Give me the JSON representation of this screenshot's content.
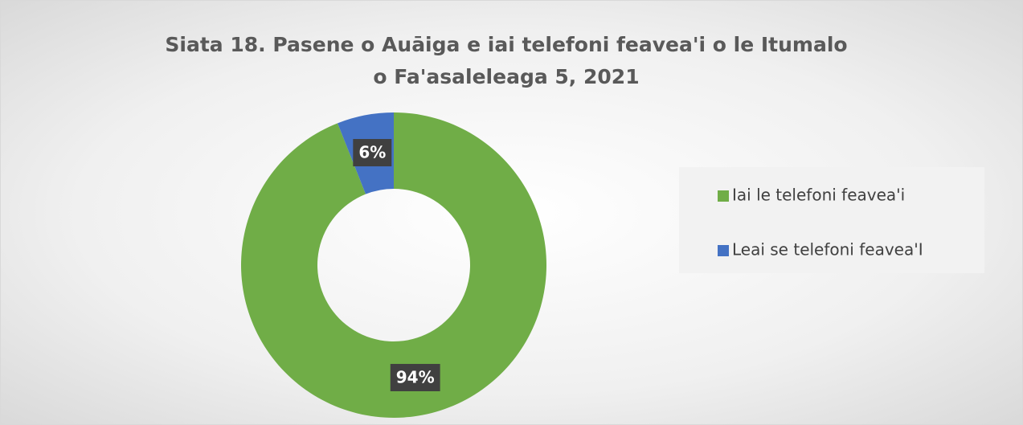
{
  "chart_data": {
    "type": "donut",
    "title": "Siata 18. Pasene o Auāiga e iai telefoni feavea'i o le Itumalo o Fa'asaleleaga 5, 2021",
    "categories": [
      "Iai le telefoni feavea'i",
      "Leai se telefoni feavea'I"
    ],
    "values": [
      94,
      6
    ],
    "value_labels": [
      "94%",
      "6%"
    ],
    "colors": [
      "#70ad47",
      "#4472c4"
    ],
    "legend": "right"
  }
}
